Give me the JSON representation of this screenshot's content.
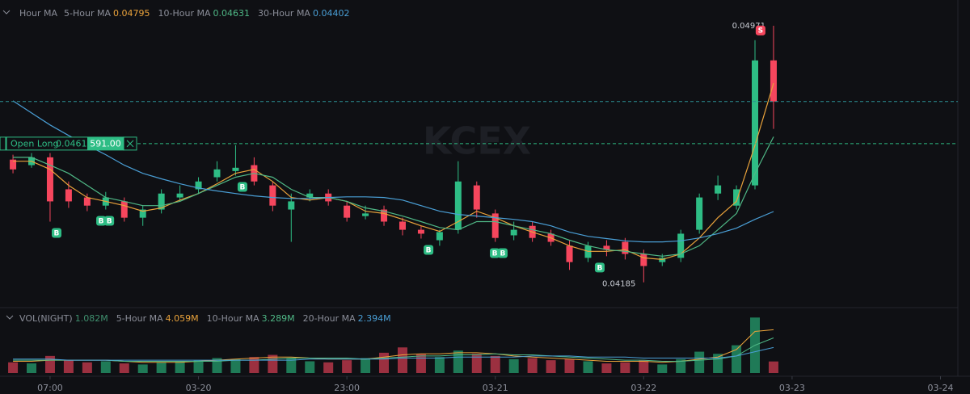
{
  "chart_data": [
    {
      "type": "candlestick",
      "title": "Hour MA",
      "watermark": "KCEX",
      "up_color": "#2ebd85",
      "down_color": "#f6465d",
      "x": [
        0,
        1,
        2,
        3,
        4,
        5,
        6,
        7,
        8,
        9,
        10,
        11,
        12,
        13,
        14,
        15,
        16,
        17,
        18,
        19,
        20,
        21,
        22,
        23,
        24,
        25,
        26,
        27,
        28,
        29,
        30,
        31,
        32,
        33,
        34,
        35,
        36,
        37,
        38,
        39,
        40,
        41
      ],
      "open": [
        0.04561,
        0.04544,
        0.04568,
        0.0447,
        0.04445,
        0.0442,
        0.04433,
        0.04383,
        0.04408,
        0.04445,
        0.0447,
        0.04507,
        0.04526,
        0.04544,
        0.04482,
        0.04408,
        0.04445,
        0.04457,
        0.0442,
        0.04388,
        0.04408,
        0.04371,
        0.04346,
        0.04314,
        0.04346,
        0.04482,
        0.04396,
        0.04329,
        0.04358,
        0.04334,
        0.04297,
        0.0426,
        0.04297,
        0.04309,
        0.04272,
        0.04247,
        0.0426,
        0.04346,
        0.04457,
        0.0442,
        0.04482,
        0.04865
      ],
      "high": [
        0.04576,
        0.04581,
        0.04581,
        0.04494,
        0.04457,
        0.04462,
        0.04445,
        0.0442,
        0.0447,
        0.04482,
        0.04507,
        0.04556,
        0.04605,
        0.04568,
        0.04494,
        0.04457,
        0.0447,
        0.0447,
        0.04433,
        0.0442,
        0.0442,
        0.04383,
        0.04358,
        0.04346,
        0.04556,
        0.04494,
        0.04408,
        0.04371,
        0.04371,
        0.04346,
        0.04314,
        0.04309,
        0.04314,
        0.04321,
        0.04285,
        0.04272,
        0.04346,
        0.04457,
        0.04512,
        0.04482,
        0.04927,
        0.04971
      ],
      "low": [
        0.04519,
        0.04536,
        0.04371,
        0.04413,
        0.04403,
        0.04408,
        0.04371,
        0.04358,
        0.04396,
        0.04433,
        0.04457,
        0.04494,
        0.04512,
        0.04482,
        0.04403,
        0.04309,
        0.04433,
        0.0442,
        0.04371,
        0.04378,
        0.04358,
        0.04329,
        0.04319,
        0.04297,
        0.04334,
        0.04383,
        0.04309,
        0.04314,
        0.04309,
        0.04297,
        0.04223,
        0.04247,
        0.04265,
        0.04255,
        0.04185,
        0.04235,
        0.04247,
        0.04334,
        0.04437,
        0.04408,
        0.0447,
        0.04655
      ],
      "close": [
        0.04531,
        0.04568,
        0.04433,
        0.04433,
        0.0442,
        0.04445,
        0.04383,
        0.04408,
        0.04457,
        0.04457,
        0.04494,
        0.04531,
        0.04536,
        0.04494,
        0.0442,
        0.04433,
        0.04457,
        0.04433,
        0.04383,
        0.04396,
        0.04371,
        0.04346,
        0.04334,
        0.04339,
        0.04494,
        0.04408,
        0.04321,
        0.04346,
        0.04321,
        0.04309,
        0.04247,
        0.04297,
        0.04285,
        0.04272,
        0.04235,
        0.0426,
        0.04334,
        0.04445,
        0.04482,
        0.0447,
        0.04865,
        0.04739
      ],
      "series": [
        {
          "name": "5-Hour MA",
          "color": "#e9a23b",
          "values": [
            0.04556,
            0.04556,
            0.04531,
            0.04482,
            0.04445,
            0.04433,
            0.0442,
            0.04403,
            0.04413,
            0.04437,
            0.04457,
            0.04487,
            0.04519,
            0.04531,
            0.04494,
            0.04445,
            0.04437,
            0.04445,
            0.04433,
            0.04403,
            0.04396,
            0.04378,
            0.04358,
            0.04341,
            0.04371,
            0.04403,
            0.04383,
            0.04358,
            0.04339,
            0.04321,
            0.04297,
            0.0428,
            0.0428,
            0.04285,
            0.0426,
            0.04255,
            0.04272,
            0.04321,
            0.04383,
            0.04433,
            0.04605,
            0.04795
          ]
        },
        {
          "name": "10-Hour MA",
          "color": "#4fb886",
          "values": [
            0.04568,
            0.04568,
            0.04544,
            0.04519,
            0.04482,
            0.04445,
            0.04433,
            0.0442,
            0.0442,
            0.04433,
            0.04457,
            0.04482,
            0.04507,
            0.04519,
            0.04507,
            0.0447,
            0.04445,
            0.04445,
            0.04433,
            0.04413,
            0.04403,
            0.04388,
            0.04371,
            0.04353,
            0.04346,
            0.04371,
            0.04371,
            0.04358,
            0.04346,
            0.04334,
            0.04314,
            0.04297,
            0.04285,
            0.0428,
            0.04272,
            0.04265,
            0.04272,
            0.04297,
            0.04346,
            0.04396,
            0.04519,
            0.04631
          ]
        },
        {
          "name": "30-Hour MA",
          "color": "#4a9fd6",
          "values": [
            0.04741,
            0.04704,
            0.04667,
            0.04635,
            0.04605,
            0.04576,
            0.04544,
            0.04519,
            0.04502,
            0.04487,
            0.04474,
            0.04465,
            0.04457,
            0.0445,
            0.04445,
            0.04442,
            0.04442,
            0.04445,
            0.04447,
            0.04447,
            0.04445,
            0.04437,
            0.0442,
            0.04403,
            0.04393,
            0.04388,
            0.04383,
            0.04378,
            0.04371,
            0.04358,
            0.04339,
            0.04326,
            0.04319,
            0.04312,
            0.04309,
            0.04309,
            0.04312,
            0.04321,
            0.04334,
            0.04351,
            0.04378,
            0.04402
          ]
        }
      ],
      "trades": [
        {
          "x": 2.35,
          "side": "B"
        },
        {
          "x": 4.75,
          "side": "B"
        },
        {
          "x": 5.19,
          "side": "B"
        },
        {
          "x": 12.37,
          "side": "B"
        },
        {
          "x": 22.4,
          "side": "B"
        },
        {
          "x": 25.97,
          "side": "B"
        },
        {
          "x": 26.4,
          "side": "B"
        },
        {
          "x": 31.63,
          "side": "B"
        },
        {
          "x": 40.3,
          "side": "S"
        }
      ],
      "position": {
        "name": "Open Long",
        "price": {
          "value": 0.0461,
          "label": "0.04610"
        },
        "size": "591.00"
      },
      "xlim": [
        -0.7,
        50.85
      ],
      "ylim": [
        0.0411,
        0.0505
      ]
    },
    {
      "type": "bar",
      "title": "VOL(NIGHT)",
      "x": [
        0,
        1,
        2,
        3,
        4,
        5,
        6,
        7,
        8,
        9,
        10,
        11,
        12,
        13,
        14,
        15,
        16,
        17,
        18,
        19,
        20,
        21,
        22,
        23,
        24,
        25,
        26,
        27,
        28,
        29,
        30,
        31,
        32,
        33,
        34,
        35,
        36,
        37,
        38,
        39,
        40,
        41
      ],
      "values": [
        1.0,
        0.9,
        1.6,
        1.2,
        1.0,
        1.1,
        0.9,
        0.8,
        1.0,
        1.1,
        1.2,
        1.4,
        1.3,
        1.5,
        1.7,
        1.4,
        1.1,
        1.0,
        1.2,
        1.4,
        1.9,
        2.4,
        1.8,
        1.5,
        2.1,
        1.8,
        1.6,
        1.3,
        1.4,
        1.2,
        1.3,
        1.1,
        0.9,
        1.0,
        1.2,
        0.8,
        1.3,
        2.0,
        1.8,
        2.6,
        5.2,
        1.082
      ],
      "value_label": "1.082M",
      "series": [
        {
          "name": "5-Hour MA",
          "color": "#e9a23b",
          "label": "4.059M",
          "values": [
            1.1,
            1.1,
            1.2,
            1.2,
            1.2,
            1.2,
            1.1,
            1.0,
            1.0,
            1.0,
            1.1,
            1.2,
            1.3,
            1.4,
            1.5,
            1.5,
            1.4,
            1.3,
            1.3,
            1.3,
            1.5,
            1.7,
            1.8,
            1.8,
            1.9,
            1.9,
            1.8,
            1.6,
            1.5,
            1.4,
            1.3,
            1.2,
            1.1,
            1.1,
            1.1,
            1.0,
            1.1,
            1.3,
            1.5,
            2.2,
            3.9,
            4.059
          ]
        },
        {
          "name": "10-Hour MA",
          "color": "#4fb886",
          "label": "3.289M",
          "values": [
            1.2,
            1.2,
            1.2,
            1.2,
            1.2,
            1.2,
            1.1,
            1.1,
            1.1,
            1.1,
            1.1,
            1.1,
            1.2,
            1.2,
            1.3,
            1.4,
            1.4,
            1.4,
            1.4,
            1.3,
            1.4,
            1.5,
            1.6,
            1.6,
            1.7,
            1.7,
            1.8,
            1.7,
            1.7,
            1.6,
            1.5,
            1.4,
            1.3,
            1.2,
            1.2,
            1.1,
            1.1,
            1.2,
            1.3,
            1.6,
            2.6,
            3.289
          ]
        },
        {
          "name": "20-Hour MA",
          "color": "#4a9fd6",
          "label": "2.394M",
          "values": [
            1.3,
            1.3,
            1.3,
            1.2,
            1.2,
            1.2,
            1.2,
            1.2,
            1.2,
            1.2,
            1.2,
            1.2,
            1.2,
            1.2,
            1.2,
            1.2,
            1.3,
            1.3,
            1.3,
            1.3,
            1.3,
            1.4,
            1.4,
            1.4,
            1.5,
            1.5,
            1.5,
            1.5,
            1.6,
            1.6,
            1.6,
            1.5,
            1.5,
            1.5,
            1.4,
            1.4,
            1.4,
            1.4,
            1.4,
            1.6,
            2.0,
            2.394
          ]
        }
      ],
      "xlim": [
        -0.7,
        50.85
      ],
      "ylim": [
        0,
        5.6
      ],
      "xticks": [
        {
          "value": 2,
          "label": "07:00"
        },
        {
          "value": 10,
          "label": "03-20"
        },
        {
          "value": 18,
          "label": "23:00"
        },
        {
          "value": 26,
          "label": "03-21"
        },
        {
          "value": 34,
          "label": "03-22"
        },
        {
          "value": 42,
          "label": "03-23"
        },
        {
          "value": 50,
          "label": "03-24"
        }
      ]
    }
  ]
}
